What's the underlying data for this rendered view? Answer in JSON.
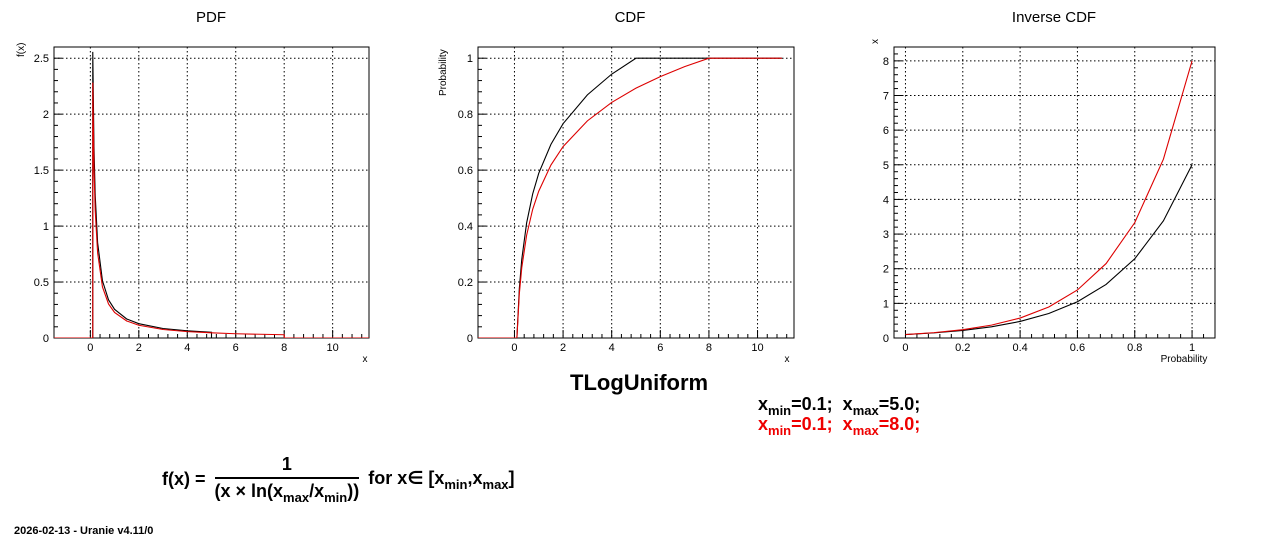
{
  "chart_data": [
    {
      "type": "line",
      "title": "PDF",
      "xlabel": "x",
      "ylabel": "f(x)",
      "xlim": [
        -1.5,
        11.5
      ],
      "ylim": [
        0,
        2.6
      ],
      "xticks": [
        0,
        2,
        4,
        6,
        8,
        10
      ],
      "xtick_labels": [
        "0",
        "2",
        "4",
        "6",
        "8",
        "10"
      ],
      "yticks": [
        0,
        0.5,
        1,
        1.5,
        2,
        2.5
      ],
      "ytick_labels": [
        "0",
        "0.5",
        "1",
        "1.5",
        "2",
        "2.5"
      ],
      "grid": true,
      "series": [
        {
          "color": "#000000",
          "x": [
            0.1,
            0.15,
            0.2,
            0.3,
            0.5,
            0.75,
            1,
            1.5,
            2,
            3,
            4,
            5
          ],
          "y": [
            2.556,
            1.704,
            1.278,
            0.852,
            0.511,
            0.341,
            0.256,
            0.17,
            0.128,
            0.085,
            0.064,
            0.051
          ]
        },
        {
          "color": "#dd0000",
          "x": [
            0.1,
            0.15,
            0.2,
            0.3,
            0.5,
            0.75,
            1,
            1.5,
            2,
            3,
            4,
            5,
            6,
            8
          ],
          "y": [
            2.282,
            1.521,
            1.141,
            0.761,
            0.456,
            0.304,
            0.228,
            0.152,
            0.114,
            0.076,
            0.057,
            0.046,
            0.038,
            0.029
          ]
        }
      ]
    },
    {
      "type": "line",
      "title": "CDF",
      "xlabel": "x",
      "ylabel": "Probability",
      "xlim": [
        -1.5,
        11.5
      ],
      "ylim": [
        0,
        1.04
      ],
      "xticks": [
        0,
        2,
        4,
        6,
        8,
        10
      ],
      "xtick_labels": [
        "0",
        "2",
        "4",
        "6",
        "8",
        "10"
      ],
      "yticks": [
        0,
        0.2,
        0.4,
        0.6,
        0.8,
        1
      ],
      "ytick_labels": [
        "0",
        "0.2",
        "0.4",
        "0.6",
        "0.8",
        "1"
      ],
      "grid": true,
      "series": [
        {
          "color": "#000000",
          "x": [
            0.1,
            0.2,
            0.3,
            0.5,
            0.75,
            1,
            1.5,
            2,
            3,
            4,
            5,
            11
          ],
          "y": [
            0,
            0.177,
            0.281,
            0.411,
            0.515,
            0.589,
            0.692,
            0.766,
            0.869,
            0.943,
            1,
            1
          ]
        },
        {
          "color": "#dd0000",
          "x": [
            0.1,
            0.2,
            0.3,
            0.5,
            0.75,
            1,
            1.5,
            2,
            3,
            4,
            5,
            6,
            7,
            8,
            11
          ],
          "y": [
            0,
            0.158,
            0.251,
            0.367,
            0.46,
            0.525,
            0.618,
            0.684,
            0.776,
            0.842,
            0.893,
            0.934,
            0.97,
            1,
            1
          ]
        }
      ]
    },
    {
      "type": "line",
      "title": "Inverse CDF",
      "xlabel": "Probability",
      "ylabel": "x",
      "xlim": [
        -0.04,
        1.08
      ],
      "ylim": [
        0,
        8.4
      ],
      "xticks": [
        0,
        0.2,
        0.4,
        0.6,
        0.8,
        1
      ],
      "xtick_labels": [
        "0",
        "0.2",
        "0.4",
        "0.6",
        "0.8",
        "1"
      ],
      "yticks": [
        0,
        1,
        2,
        3,
        4,
        5,
        6,
        7,
        8
      ],
      "ytick_labels": [
        "0",
        "1",
        "2",
        "3",
        "4",
        "5",
        "6",
        "7",
        "8"
      ],
      "grid": true,
      "series": [
        {
          "color": "#000000",
          "x": [
            0,
            0.1,
            0.2,
            0.3,
            0.4,
            0.5,
            0.6,
            0.7,
            0.8,
            0.9,
            1
          ],
          "y": [
            0.1,
            0.148,
            0.219,
            0.324,
            0.478,
            0.707,
            1.046,
            1.546,
            2.287,
            3.381,
            5.0
          ]
        },
        {
          "color": "#dd0000",
          "x": [
            0,
            0.1,
            0.2,
            0.3,
            0.4,
            0.5,
            0.6,
            0.7,
            0.8,
            0.9,
            1
          ],
          "y": [
            0.1,
            0.155,
            0.24,
            0.372,
            0.576,
            0.894,
            1.386,
            2.148,
            3.33,
            5.162,
            8.0
          ]
        }
      ]
    }
  ],
  "heading": "TLogUniform",
  "legend": {
    "black": {
      "color": "#000000",
      "a": "x",
      "a_sub": "min",
      "a_val": "=0.1;  ",
      "b": "x",
      "b_sub": "max",
      "b_val": "=5.0;"
    },
    "red": {
      "color": "#ee0000",
      "a": "x",
      "a_sub": "min",
      "a_val": "=0.1;  ",
      "b": "x",
      "b_sub": "max",
      "b_val": "=8.0;"
    }
  },
  "formula": {
    "lhs": "f(x) = ",
    "num": "1",
    "den_a": "(x × ln(x",
    "den_sub1": "max",
    "den_b": "/x",
    "den_sub2": "min",
    "den_c": "))",
    "rhs_a": " for x∈ [x",
    "rhs_sub1": "min",
    "rhs_b": ",x",
    "rhs_sub2": "max",
    "rhs_c": "]"
  },
  "footer": "2026-02-13 - Uranie v4.11/0"
}
